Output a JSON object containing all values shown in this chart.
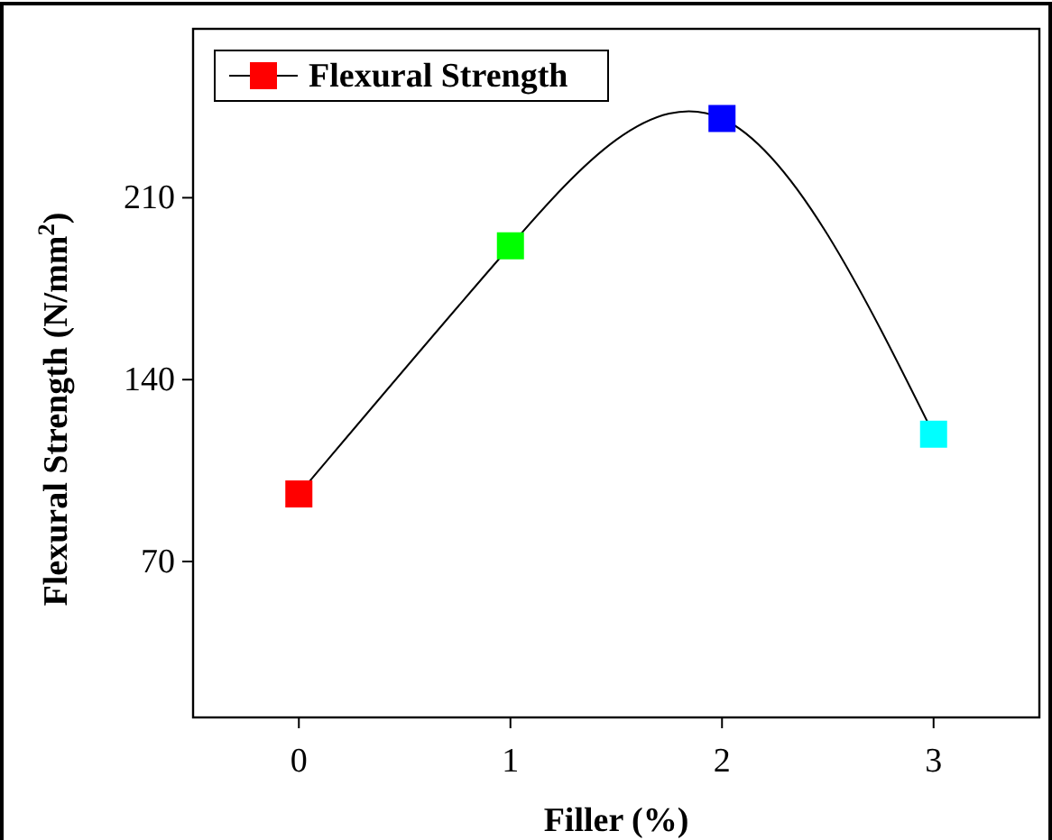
{
  "chart_data": {
    "type": "line",
    "xlabel": "Filler (%)",
    "ylabel": "Flexural Strength (N/mm$^{2}$)",
    "x": [
      0,
      1,
      2,
      3
    ],
    "series": [
      {
        "name": "Flexural Strength",
        "color": "#000000",
        "colors": [
          "#ff0000",
          "#00ff00",
          "#0000ff",
          "#00ffff"
        ],
        "values": [
          96,
          191.5,
          240.5,
          119
        ]
      }
    ],
    "xlim": [
      -0.5,
      3.5
    ],
    "xticks": [
      0,
      1,
      2,
      3
    ],
    "ylim": [
      10,
      275
    ],
    "yticks": [
      70,
      140,
      210
    ],
    "marker": "square",
    "line_style": "solid",
    "grid": false,
    "legend": "top left"
  }
}
